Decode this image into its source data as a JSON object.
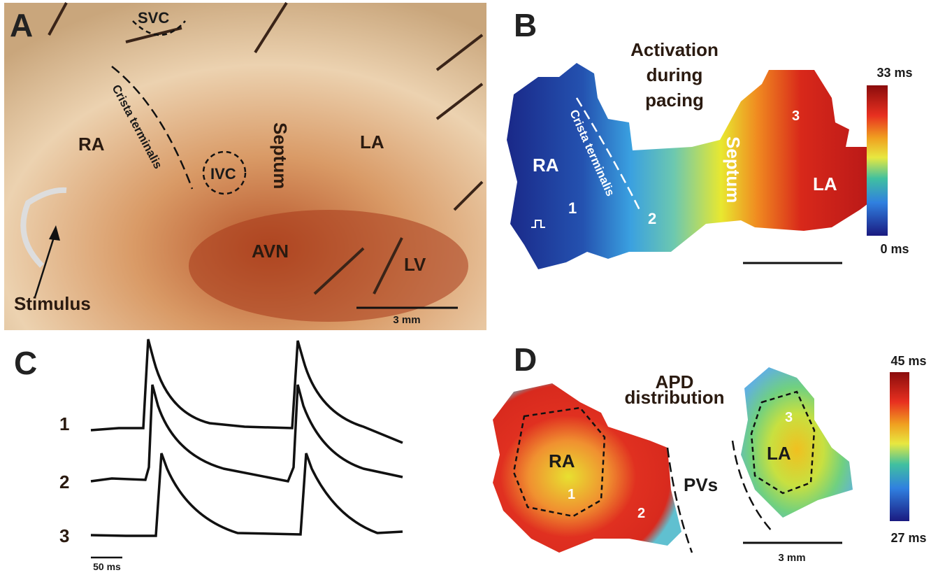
{
  "panel_a": {
    "label": "A",
    "svc": "SVC",
    "crista": "Crista terminalis",
    "ra": "RA",
    "ivc": "IVC",
    "septum": "Septum",
    "la": "LA",
    "avn": "AVN",
    "lv": "LV",
    "stimulus": "Stimulus",
    "scale_bar": "3 mm"
  },
  "panel_b": {
    "label": "B",
    "title": [
      "Activation",
      "during",
      "pacing"
    ],
    "crista": "Crista terminalis",
    "ra": "RA",
    "site1": "1",
    "site2": "2",
    "septum": "Septum",
    "site3": "3",
    "la": "LA",
    "colorbar_max": "33 ms",
    "colorbar_min": "0 ms"
  },
  "panel_c": {
    "label": "C",
    "traces": [
      "1",
      "2",
      "3"
    ],
    "scale_bar": "50 ms"
  },
  "panel_d": {
    "label": "D",
    "title": [
      "APD",
      "distribution"
    ],
    "ra": "RA",
    "site1": "1",
    "site2": "2",
    "pvs": "PVs",
    "la": "LA",
    "site3": "3",
    "scale_bar": "3 mm",
    "colorbar_max": "45 ms",
    "colorbar_min": "27 ms"
  }
}
